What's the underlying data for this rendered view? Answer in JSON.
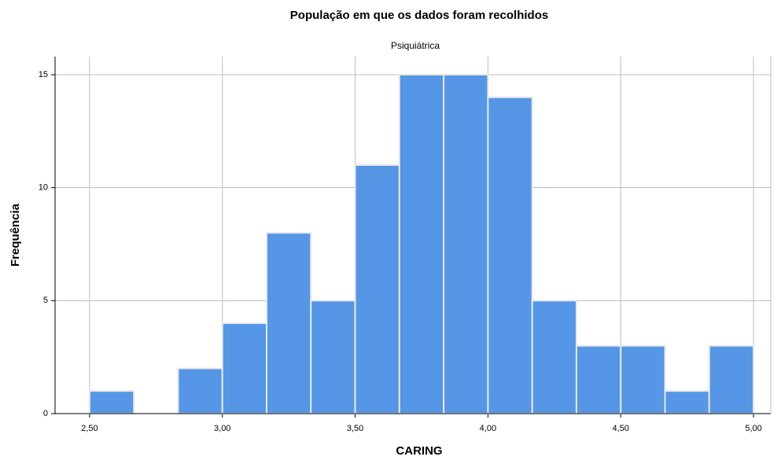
{
  "chart_data": {
    "type": "histogram",
    "title": "População em que os dados foram recolhidos",
    "subtitle": "Psiquiátrica",
    "xlabel": "CARING",
    "ylabel": "Frequência",
    "bins": [
      2.5,
      2.6667,
      2.8333,
      3.0,
      3.1667,
      3.3333,
      3.5,
      3.6667,
      3.8333,
      4.0,
      4.1667,
      4.3333,
      4.5,
      4.6667,
      4.8333,
      5.0
    ],
    "counts": [
      1,
      0,
      2,
      4,
      8,
      5,
      11,
      15,
      15,
      14,
      5,
      3,
      3,
      1,
      3
    ],
    "color": "#5596e6",
    "xlim": [
      2.37,
      5.065
    ],
    "ylim": [
      0,
      15.8
    ],
    "xticks": [
      {
        "value": 2.5,
        "label": "2,50"
      },
      {
        "value": 3.0,
        "label": "3,00"
      },
      {
        "value": 3.5,
        "label": "3,50"
      },
      {
        "value": 4.0,
        "label": "4,00"
      },
      {
        "value": 4.5,
        "label": "4,50"
      },
      {
        "value": 5.0,
        "label": "5,00"
      }
    ],
    "yticks": [
      0,
      5,
      10,
      15
    ],
    "grid": true
  }
}
